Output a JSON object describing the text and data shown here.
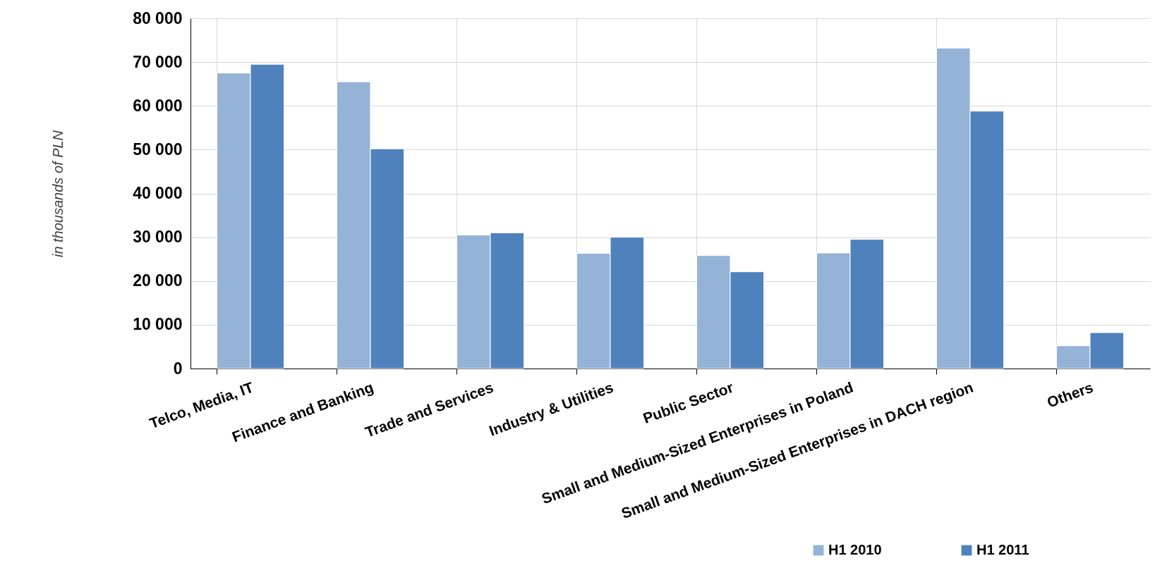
{
  "chart_data": {
    "type": "bar",
    "ylabel": "in thousands of PLN",
    "categories": [
      "Telco, Media, IT",
      "Finance and Banking",
      "Trade and Services",
      "Industry & Utilities",
      "Public Sector",
      "Small and Medium-Sized Enterprises in Poland",
      "Small and Medium-Sized Enterprises in DACH region",
      "Others"
    ],
    "series": [
      {
        "name": "H1 2010",
        "color": "#95b3d7",
        "values": [
          67500,
          65500,
          30500,
          26300,
          25800,
          26400,
          73200,
          5200
        ]
      },
      {
        "name": "H1 2011",
        "color": "#4f81bd",
        "values": [
          69500,
          50200,
          31000,
          30000,
          22100,
          29500,
          58800,
          8200
        ]
      }
    ],
    "ylim": [
      0,
      80000
    ],
    "yticks": [
      0,
      {
        "value": 10000,
        "label": "10 000"
      },
      {
        "value": 20000,
        "label": "20 000"
      },
      {
        "value": 30000,
        "label": "30 000"
      },
      {
        "value": 40000,
        "label": "40 000"
      },
      {
        "value": 50000,
        "label": "50 000"
      },
      {
        "value": 60000,
        "label": "60 000"
      },
      {
        "value": 70000,
        "label": "70 000"
      },
      {
        "value": 80000,
        "label": "80 000"
      }
    ],
    "grid": true,
    "legend": "bottom right"
  }
}
